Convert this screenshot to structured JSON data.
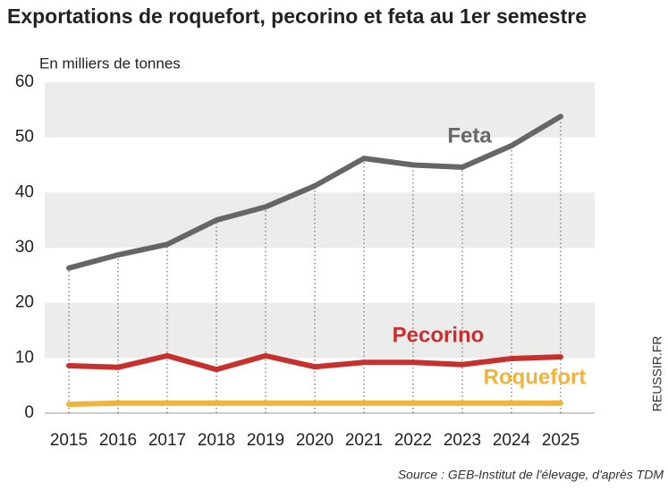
{
  "chart_data": {
    "type": "line",
    "title": "Exportations de roquefort, pecorino et feta au 1er semestre",
    "y_label": "En milliers de tonnes",
    "source": "Source : GEB-Institut de l'élevage, d'après TDM",
    "credit": "REUSSIR.FR",
    "categories": [
      "2015",
      "2016",
      "2017",
      "2018",
      "2019",
      "2020",
      "2021",
      "2022",
      "2023",
      "2024",
      "2025"
    ],
    "series": [
      {
        "name": "Feta",
        "color": "#666666",
        "values": [
          26.3,
          28.7,
          30.6,
          35,
          37.4,
          41.2,
          46.2,
          45,
          44.6,
          48.5,
          53.8
        ]
      },
      {
        "name": "Pecorino",
        "color": "#c8302e",
        "values": [
          8.6,
          8.3,
          10.4,
          7.9,
          10.4,
          8.4,
          9.2,
          9.2,
          8.8,
          9.9,
          10.2
        ]
      },
      {
        "name": "Roquefort",
        "color": "#f0b43c",
        "values": [
          1.6,
          1.8,
          1.8,
          1.8,
          1.8,
          1.8,
          1.8,
          1.8,
          1.8,
          1.8,
          1.8
        ]
      }
    ],
    "ylim": [
      0,
      60
    ],
    "yticks": [
      0,
      10,
      20,
      30,
      40,
      50,
      60
    ],
    "grid": true
  }
}
